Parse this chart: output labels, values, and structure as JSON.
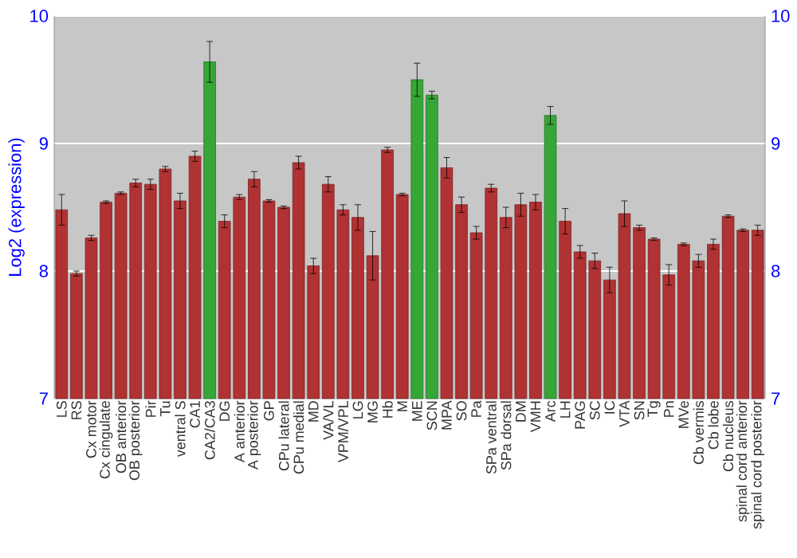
{
  "chart_data": {
    "type": "bar",
    "ylabel": "Log2 (expression)",
    "categories": [
      "LS",
      "RS",
      "Cx motor",
      "Cx cingulate",
      "OB anterior",
      "OB posterior",
      "Pir",
      "Tu",
      "ventral S",
      "CA1",
      "CA2/CA3",
      "DG",
      "A anterior",
      "A posterior",
      "GP",
      "CPu lateral",
      "CPu medial",
      "MD",
      "VA/VL",
      "VPM/VPL",
      "LG",
      "MG",
      "Hb",
      "M",
      "ME",
      "SCN",
      "MPA",
      "SO",
      "Pa",
      "SPa ventral",
      "SPa dorsal",
      "DM",
      "VMH",
      "Arc",
      "LH",
      "PAG",
      "SC",
      "IC",
      "VTA",
      "SN",
      "Tg",
      "Pn",
      "MVe",
      "Cb vermis",
      "Cb lobe",
      "Cb nucleus",
      "spinal cord anterior",
      "spinal cord posterior"
    ],
    "values": [
      8.48,
      7.98,
      8.26,
      8.54,
      8.61,
      8.69,
      8.68,
      8.8,
      8.55,
      8.9,
      9.64,
      8.39,
      8.58,
      8.72,
      8.55,
      8.5,
      8.85,
      8.04,
      8.68,
      8.48,
      8.42,
      8.12,
      8.95,
      8.6,
      9.5,
      9.38,
      8.81,
      8.52,
      8.3,
      8.65,
      8.42,
      8.52,
      8.54,
      9.22,
      8.39,
      8.15,
      8.08,
      7.93,
      8.45,
      8.34,
      8.25,
      7.97,
      8.21,
      8.08,
      8.21,
      8.43,
      8.32,
      8.32
    ],
    "errors": [
      0.12,
      0.02,
      0.02,
      0.01,
      0.01,
      0.03,
      0.04,
      0.02,
      0.06,
      0.04,
      0.16,
      0.05,
      0.02,
      0.06,
      0.01,
      0.01,
      0.05,
      0.06,
      0.06,
      0.04,
      0.1,
      0.19,
      0.02,
      0.01,
      0.13,
      0.03,
      0.08,
      0.06,
      0.05,
      0.03,
      0.08,
      0.09,
      0.06,
      0.07,
      0.1,
      0.05,
      0.06,
      0.1,
      0.1,
      0.02,
      0.01,
      0.08,
      0.01,
      0.05,
      0.04,
      0.01,
      0.01,
      0.04
    ],
    "colors": [
      "#b03232",
      "#b03232",
      "#b03232",
      "#b03232",
      "#b03232",
      "#b03232",
      "#b03232",
      "#b03232",
      "#b03232",
      "#b03232",
      "#36a636",
      "#b03232",
      "#b03232",
      "#b03232",
      "#b03232",
      "#b03232",
      "#b03232",
      "#b03232",
      "#b03232",
      "#b03232",
      "#b03232",
      "#b03232",
      "#b03232",
      "#b03232",
      "#36a636",
      "#36a636",
      "#b03232",
      "#b03232",
      "#b03232",
      "#b03232",
      "#b03232",
      "#b03232",
      "#b03232",
      "#36a636",
      "#b03232",
      "#b03232",
      "#b03232",
      "#b03232",
      "#b03232",
      "#b03232",
      "#b03232",
      "#b03232",
      "#b03232",
      "#b03232",
      "#b03232",
      "#b03232",
      "#b03232",
      "#b03232"
    ],
    "ylim": [
      7,
      10
    ],
    "yticks": [
      7,
      8,
      9,
      10
    ],
    "y2lim": [
      7,
      10
    ],
    "y2ticks": [
      7,
      8,
      9,
      10
    ],
    "grid": "y"
  }
}
